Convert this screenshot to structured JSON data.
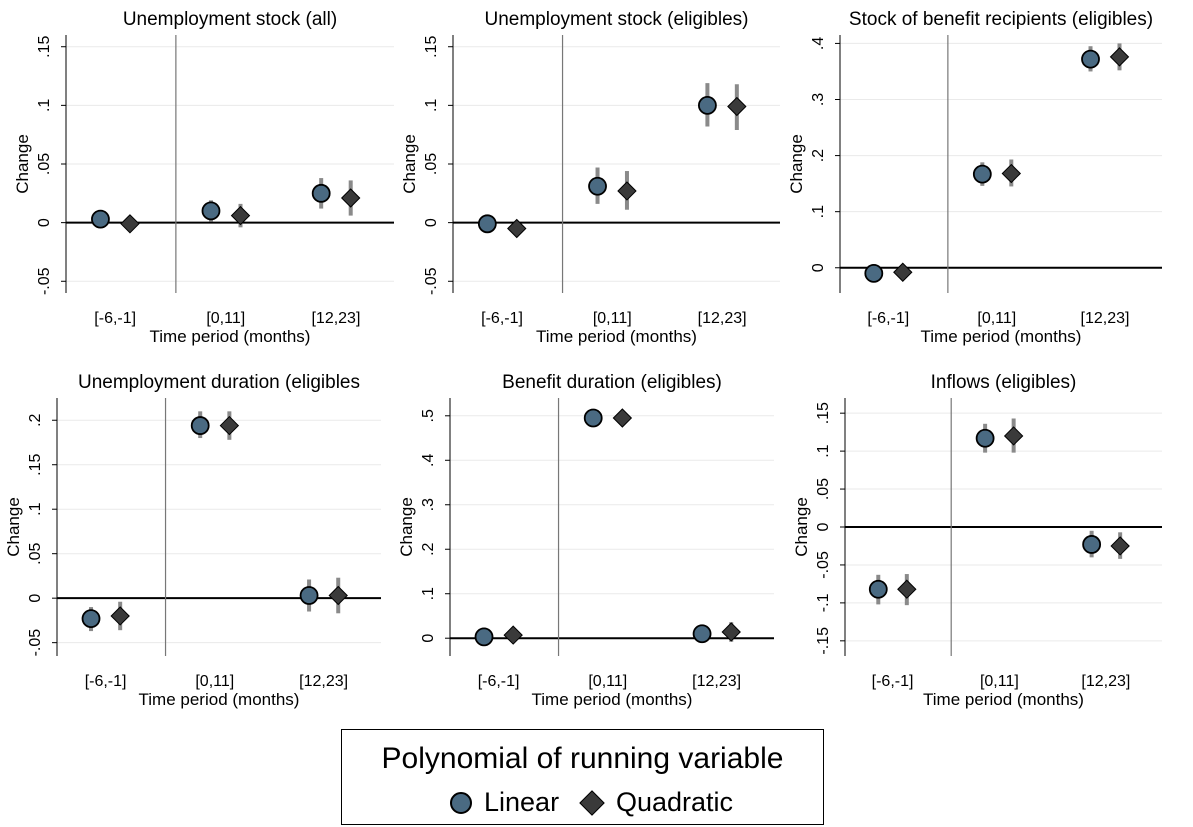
{
  "figure": {
    "legend_title": "Polynomial of running variable",
    "legend_items": [
      "Linear",
      "Quadratic"
    ]
  },
  "chart_data": [
    {
      "type": "scatter",
      "title": "Unemployment stock (all)",
      "xlabel": "Time period (months)",
      "ylabel": "Change",
      "categories": [
        "[-6,-1]",
        "[0,11]",
        "[12,23]"
      ],
      "ylim": [
        -0.06,
        0.16
      ],
      "yticks": [
        -0.05,
        0,
        0.05,
        0.1,
        0.15
      ],
      "ytick_labels": [
        "-.05",
        "0",
        ".05",
        ".1",
        ".15"
      ],
      "series": [
        {
          "name": "Linear",
          "values": [
            0.003,
            0.01,
            0.025
          ],
          "ci_low": [
            null,
            0.001,
            0.012
          ],
          "ci_high": [
            null,
            0.019,
            0.038
          ]
        },
        {
          "name": "Quadratic",
          "values": [
            -0.001,
            0.006,
            0.021
          ],
          "ci_low": [
            null,
            -0.004,
            0.006
          ],
          "ci_high": [
            null,
            0.016,
            0.036
          ]
        }
      ]
    },
    {
      "type": "scatter",
      "title": "Unemployment stock (eligibles)",
      "xlabel": "Time period (months)",
      "ylabel": "Change",
      "categories": [
        "[-6,-1]",
        "[0,11]",
        "[12,23]"
      ],
      "ylim": [
        -0.06,
        0.16
      ],
      "yticks": [
        -0.05,
        0,
        0.05,
        0.1,
        0.15
      ],
      "ytick_labels": [
        "-.05",
        "0",
        ".05",
        ".1",
        ".15"
      ],
      "series": [
        {
          "name": "Linear",
          "values": [
            -0.001,
            0.031,
            0.1
          ],
          "ci_low": [
            null,
            0.016,
            0.082
          ],
          "ci_high": [
            null,
            0.047,
            0.119
          ]
        },
        {
          "name": "Quadratic",
          "values": [
            -0.005,
            0.027,
            0.099
          ],
          "ci_low": [
            null,
            0.011,
            0.079
          ],
          "ci_high": [
            null,
            0.044,
            0.118
          ]
        }
      ]
    },
    {
      "type": "scatter",
      "title": "Stock of benefit recipients (eligibles)",
      "xlabel": "Time period (months)",
      "ylabel": "Change",
      "categories": [
        "[-6,-1]",
        "[0,11]",
        "[12,23]"
      ],
      "ylim": [
        -0.045,
        0.415
      ],
      "yticks": [
        0,
        0.1,
        0.2,
        0.3,
        0.4
      ],
      "ytick_labels": [
        "0",
        ".1",
        ".2",
        ".3",
        ".4"
      ],
      "series": [
        {
          "name": "Linear",
          "values": [
            -0.01,
            0.167,
            0.372
          ],
          "ci_low": [
            null,
            0.146,
            0.35
          ],
          "ci_high": [
            null,
            0.188,
            0.395
          ]
        },
        {
          "name": "Quadratic",
          "values": [
            -0.008,
            0.168,
            0.376
          ],
          "ci_low": [
            null,
            0.145,
            0.352
          ],
          "ci_high": [
            null,
            0.193,
            0.4
          ]
        }
      ]
    },
    {
      "type": "scatter",
      "title": "Unemployment duration (eligibles",
      "xlabel": "Time period (months)",
      "ylabel": "Change",
      "categories": [
        "[-6,-1]",
        "[0,11]",
        "[12,23]"
      ],
      "ylim": [
        -0.065,
        0.225
      ],
      "yticks": [
        -0.05,
        0,
        0.05,
        0.1,
        0.15,
        0.2
      ],
      "ytick_labels": [
        "-.05",
        "0",
        ".05",
        ".1",
        ".15",
        ".2"
      ],
      "series": [
        {
          "name": "Linear",
          "values": [
            -0.023,
            0.194,
            0.003
          ],
          "ci_low": [
            -0.037,
            0.18,
            -0.015
          ],
          "ci_high": [
            -0.01,
            0.21,
            0.021
          ]
        },
        {
          "name": "Quadratic",
          "values": [
            -0.02,
            0.194,
            0.003
          ],
          "ci_low": [
            -0.036,
            0.178,
            -0.017
          ],
          "ci_high": [
            -0.004,
            0.21,
            0.023
          ]
        }
      ]
    },
    {
      "type": "scatter",
      "title": "Benefit duration (eligibles)",
      "xlabel": "Time period (months)",
      "ylabel": "Change",
      "categories": [
        "[-6,-1]",
        "[0,11]",
        "[12,23]"
      ],
      "ylim": [
        -0.04,
        0.54
      ],
      "yticks": [
        0,
        0.1,
        0.2,
        0.3,
        0.4,
        0.5
      ],
      "ytick_labels": [
        "0",
        ".1",
        ".2",
        ".3",
        ".4",
        ".5"
      ],
      "series": [
        {
          "name": "Linear",
          "values": [
            0.003,
            0.495,
            0.01
          ],
          "ci_low": [
            null,
            null,
            -0.01
          ],
          "ci_high": [
            null,
            null,
            0.03
          ]
        },
        {
          "name": "Quadratic",
          "values": [
            0.007,
            0.495,
            0.014
          ],
          "ci_low": [
            null,
            null,
            -0.008
          ],
          "ci_high": [
            null,
            null,
            0.036
          ]
        }
      ]
    },
    {
      "type": "scatter",
      "title": "Inflows (eligibles)",
      "xlabel": "Time period (months)",
      "ylabel": "Change",
      "categories": [
        "[-6,-1]",
        "[0,11]",
        "[12,23]"
      ],
      "ylim": [
        -0.17,
        0.17
      ],
      "yticks": [
        -0.15,
        -0.1,
        -0.05,
        0,
        0.05,
        0.1,
        0.15
      ],
      "ytick_labels": [
        "-.15",
        "-.1",
        "-.05",
        "0",
        ".05",
        ".1",
        ".15"
      ],
      "series": [
        {
          "name": "Linear",
          "values": [
            -0.082,
            0.117,
            -0.023
          ],
          "ci_low": [
            -0.102,
            0.098,
            -0.04
          ],
          "ci_high": [
            -0.063,
            0.136,
            -0.005
          ]
        },
        {
          "name": "Quadratic",
          "values": [
            -0.082,
            0.12,
            -0.025
          ],
          "ci_low": [
            -0.103,
            0.098,
            -0.042
          ],
          "ci_high": [
            -0.062,
            0.143,
            -0.007
          ]
        }
      ]
    }
  ]
}
